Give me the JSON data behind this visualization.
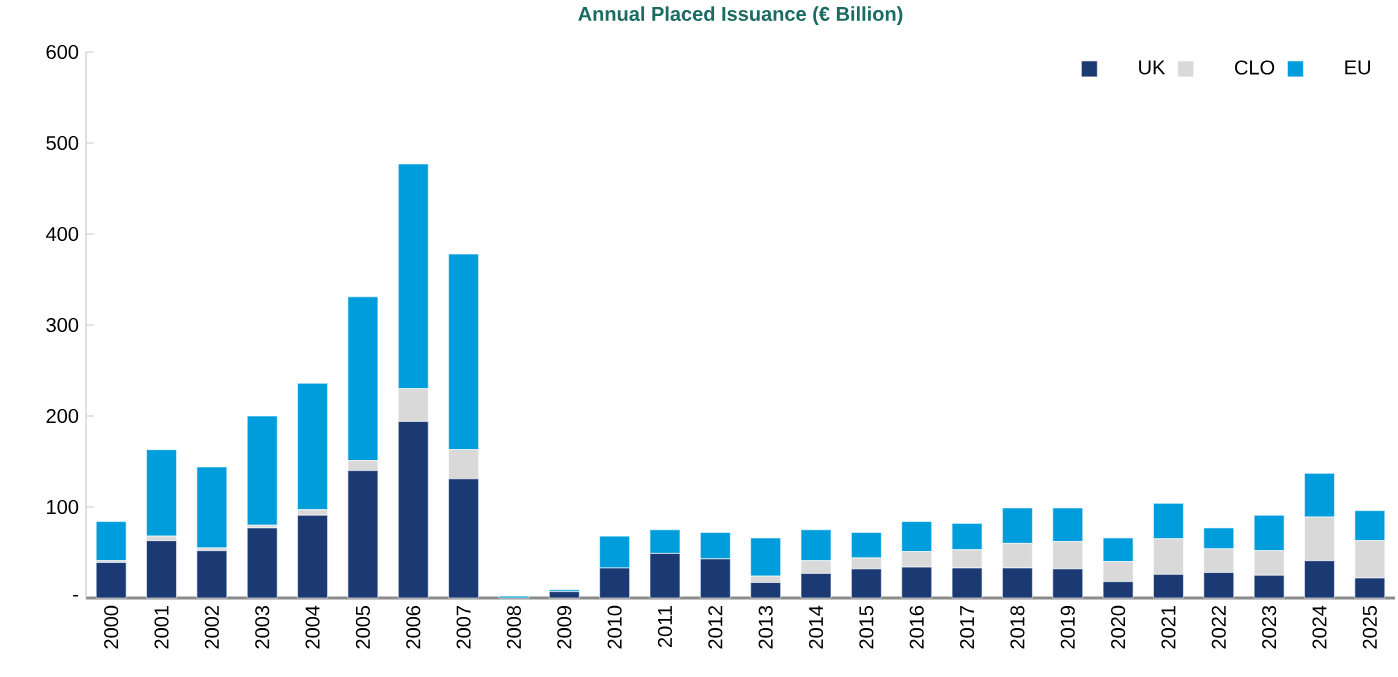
{
  "chart_data": {
    "type": "bar",
    "title": "Annual Placed Issuance (€ Billion)",
    "stacked": true,
    "legend": "top right",
    "categories": [
      "2000",
      "2001",
      "2002",
      "2003",
      "2004",
      "2005",
      "2006",
      "2007",
      "2008",
      "2009",
      "2010",
      "2011",
      "2012",
      "2013",
      "2014",
      "2015",
      "2016",
      "2017",
      "2018",
      "2019",
      "2020",
      "2021",
      "2022",
      "2023",
      "2024",
      "2025"
    ],
    "series": [
      {
        "name": "UK",
        "color": "#1b3a73",
        "values": [
          39,
          63,
          52,
          77,
          91,
          140,
          194,
          131,
          0,
          7,
          33,
          49,
          43,
          17,
          27,
          32,
          34,
          33,
          33,
          32,
          18,
          26,
          28,
          25,
          41,
          22
        ]
      },
      {
        "name": "CLO",
        "color": "#d9d9d9",
        "values": [
          2,
          5,
          3,
          3,
          6,
          11,
          36,
          32,
          0,
          0,
          0,
          0,
          0,
          7,
          14,
          12,
          17,
          20,
          27,
          30,
          22,
          39,
          26,
          27,
          48,
          41
        ]
      },
      {
        "name": "EU",
        "color": "#009ddc",
        "values": [
          43,
          95,
          89,
          120,
          139,
          180,
          247,
          215,
          2,
          2,
          35,
          26,
          29,
          42,
          34,
          28,
          33,
          29,
          39,
          37,
          26,
          39,
          23,
          39,
          48,
          33
        ]
      }
    ],
    "ylim": [
      0,
      600
    ],
    "yticks": [
      {
        "value": 0,
        "label": "-"
      },
      100,
      200,
      300,
      400,
      500,
      600
    ]
  }
}
